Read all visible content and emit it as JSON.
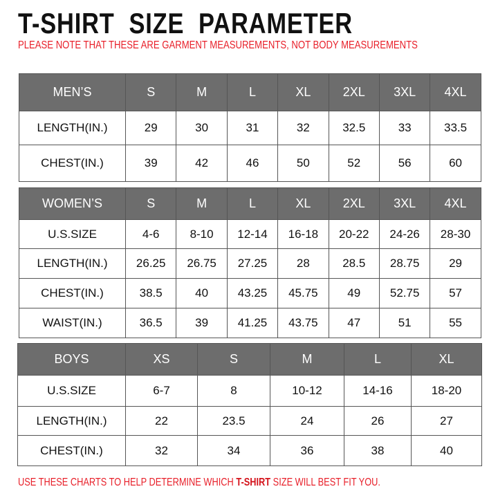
{
  "title": "T-SHIRT  SIZE  PARAMETER",
  "note": "PLEASE NOTE THAT THESE ARE GARMENT MEASUREMENTS, NOT BODY MEASUREMENTS",
  "footer": {
    "before": "USE THESE CHARTS TO HELP DETERMINE WHICH ",
    "emphasis": "T-SHIRT",
    "after": " SIZE WILL BEST FIT YOU."
  },
  "colors": {
    "header_bg": "#6d6d6d",
    "note_red": "#e8202a"
  },
  "tables": [
    {
      "header": [
        "MEN’S",
        "S",
        "M",
        "L",
        "XL",
        "2XL",
        "3XL",
        "4XL"
      ],
      "rows": [
        [
          "LENGTH(IN.)",
          "29",
          "30",
          "31",
          "32",
          "32.5",
          "33",
          "33.5"
        ],
        [
          "CHEST(IN.)",
          "39",
          "42",
          "46",
          "50",
          "52",
          "56",
          "60"
        ]
      ]
    },
    {
      "header": [
        "WOMEN’S",
        "S",
        "M",
        "L",
        "XL",
        "2XL",
        "3XL",
        "4XL"
      ],
      "rows": [
        [
          "U.S.SIZE",
          "4-6",
          "8-10",
          "12-14",
          "16-18",
          "20-22",
          "24-26",
          "28-30"
        ],
        [
          "LENGTH(IN.)",
          "26.25",
          "26.75",
          "27.25",
          "28",
          "28.5",
          "28.75",
          "29"
        ],
        [
          "CHEST(IN.)",
          "38.5",
          "40",
          "43.25",
          "45.75",
          "49",
          "52.75",
          "57"
        ],
        [
          "WAIST(IN.)",
          "36.5",
          "39",
          "41.25",
          "43.75",
          "47",
          "51",
          "55"
        ]
      ]
    },
    {
      "header": [
        "BOYS",
        "XS",
        "S",
        "M",
        "L",
        "XL"
      ],
      "rows": [
        [
          "U.S.SIZE",
          "6-7",
          "8",
          "10-12",
          "14-16",
          "18-20"
        ],
        [
          "LENGTH(IN.)",
          "22",
          "23.5",
          "24",
          "26",
          "27"
        ],
        [
          "CHEST(IN.)",
          "32",
          "34",
          "36",
          "38",
          "40"
        ]
      ]
    }
  ]
}
